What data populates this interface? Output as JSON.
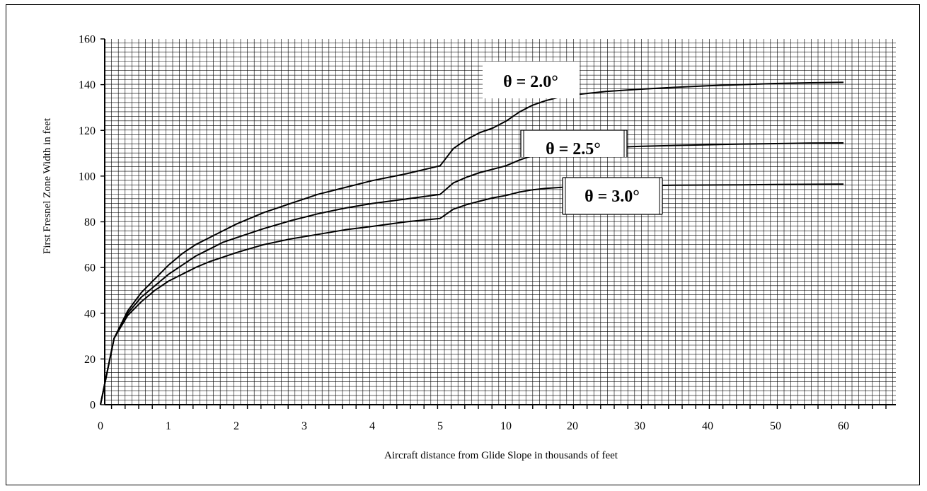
{
  "chart_data": {
    "type": "line",
    "ylabel": "First Fresnel Zone Width in feet",
    "xlabel": "Aircraft distance from Glide Slope in thousands of feet",
    "ylim": [
      0,
      160
    ],
    "y_ticks": [
      0,
      20,
      40,
      60,
      80,
      100,
      120,
      140,
      160
    ],
    "x_tick_labels": [
      "0",
      "1",
      "2",
      "3",
      "4",
      "5",
      "10",
      "20",
      "30",
      "40",
      "50",
      "60"
    ],
    "x_axis_note": "piecewise scale: 0–5 linear, then 10–60 in steps of 10",
    "grid": true,
    "x": [
      0,
      0.2,
      0.4,
      0.6,
      0.8,
      1,
      1.2,
      1.4,
      1.6,
      1.8,
      2,
      2.4,
      2.8,
      3.2,
      3.6,
      4,
      4.5,
      5,
      6,
      7,
      8,
      9,
      10,
      12,
      14,
      16,
      18,
      20,
      25,
      30,
      35,
      40,
      45,
      50,
      55,
      60
    ],
    "series": [
      {
        "name": "θ = 2.0°",
        "values": [
          0,
          29,
          41,
          49,
          55,
          61,
          66,
          70,
          73,
          76,
          79,
          84,
          88,
          92,
          95,
          98,
          101,
          104.5,
          112,
          116,
          119,
          121,
          124,
          128,
          131,
          133,
          134.5,
          135.5,
          137,
          138,
          138.8,
          139.5,
          140,
          140.5,
          140.8,
          141
        ]
      },
      {
        "name": "θ = 2.5°",
        "values": [
          0,
          29,
          40,
          47,
          52,
          57,
          61,
          65,
          68,
          71,
          73,
          77,
          80.5,
          83.5,
          86,
          88,
          90,
          92,
          97,
          99.5,
          101.5,
          103,
          104.5,
          107,
          109,
          110.5,
          111.2,
          111.8,
          112.5,
          113,
          113.4,
          113.7,
          114,
          114.2,
          114.4,
          114.5
        ]
      },
      {
        "name": "θ = 3.0°",
        "values": [
          0,
          29,
          39,
          45,
          50,
          54,
          57,
          60,
          62.5,
          64.5,
          66.5,
          70,
          72.5,
          74.5,
          76.5,
          78,
          80,
          81.5,
          85.5,
          87.5,
          89,
          90.5,
          91.5,
          93,
          94,
          94.6,
          95,
          95.3,
          95.6,
          95.8,
          96,
          96.1,
          96.2,
          96.3,
          96.4,
          96.5
        ]
      }
    ],
    "annotations": [
      "θ = 2.0°",
      "θ = 2.5°",
      "θ = 3.0°"
    ]
  }
}
